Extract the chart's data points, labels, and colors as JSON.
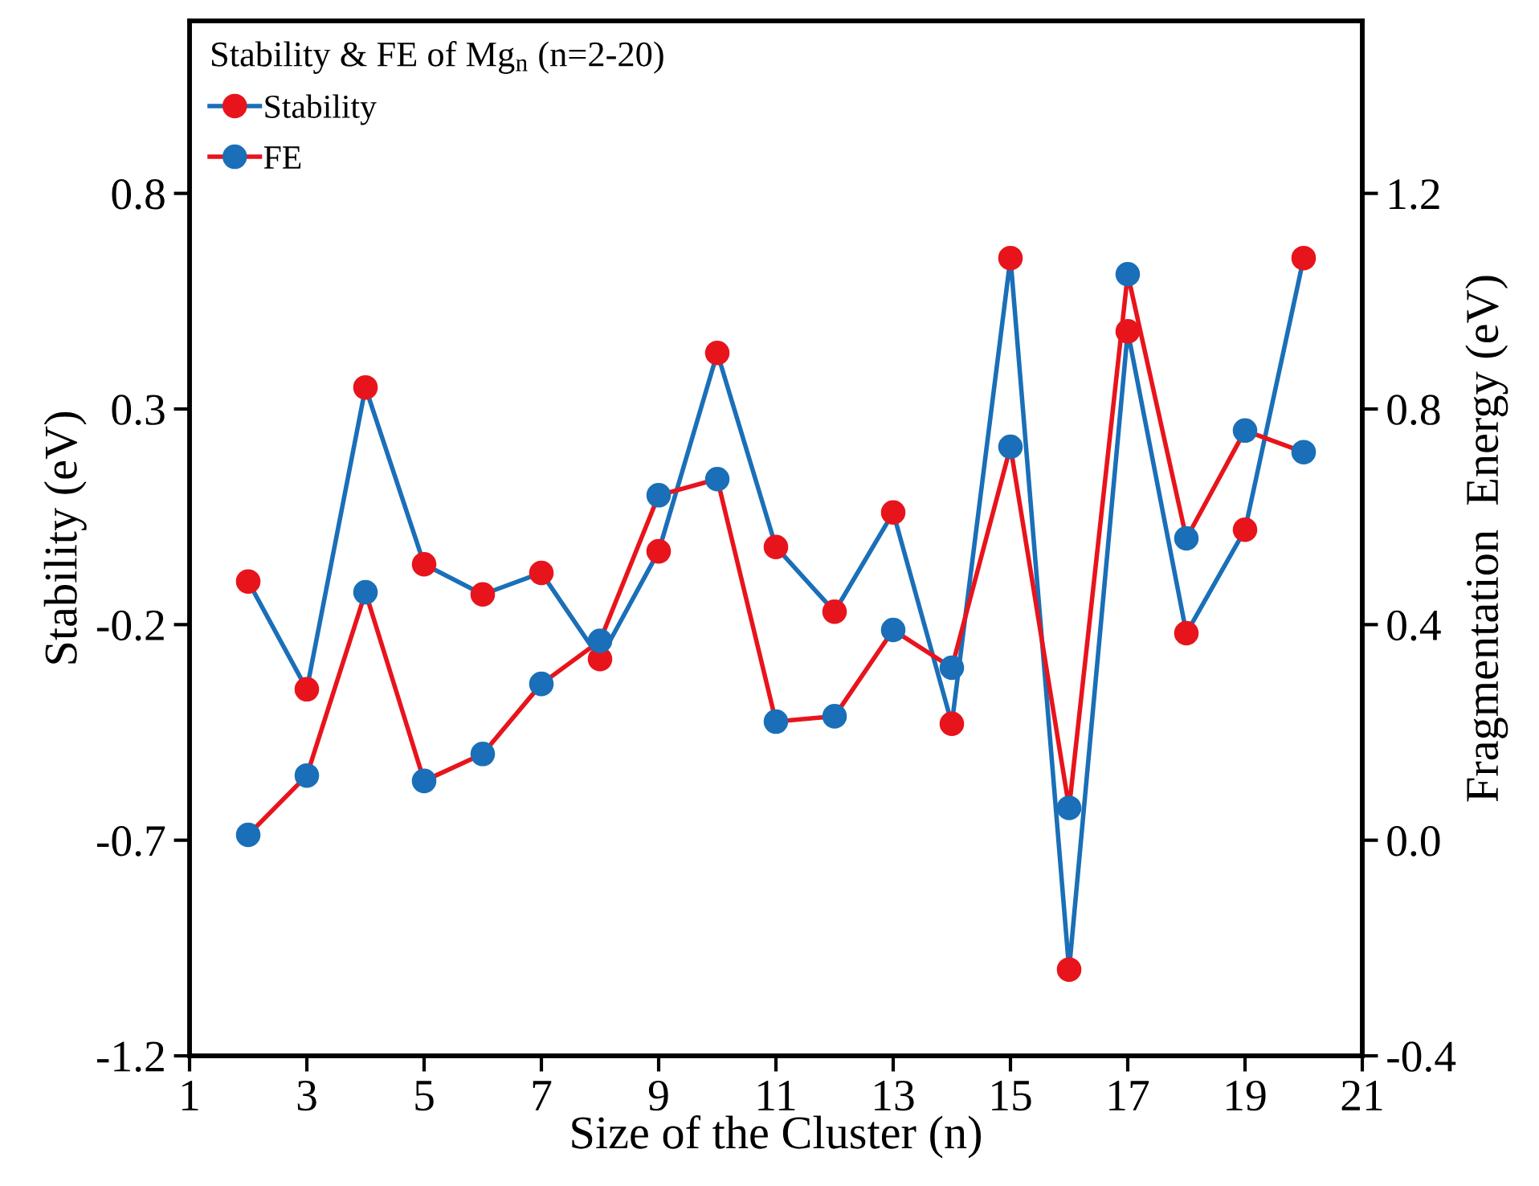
{
  "chart_data": {
    "type": "line",
    "legend_title": "Stability & FE of Mg$_{n}$ (n=2-20)",
    "xlabel": "Size of the Cluster (n)",
    "ylabel": "Stability (eV)",
    "y2label": "Fragmentation  Energy (eV)",
    "x": [
      2,
      3,
      4,
      5,
      6,
      7,
      8,
      9,
      10,
      11,
      12,
      13,
      14,
      15,
      16,
      17,
      18,
      19,
      20
    ],
    "series": [
      {
        "name": "Stability",
        "color": "#e8141c",
        "values": [
          -0.1,
          -0.35,
          0.35,
          -0.06,
          -0.13,
          -0.08,
          -0.28,
          -0.03,
          0.43,
          -0.02,
          -0.17,
          0.06,
          -0.43,
          0.65,
          -1.0,
          0.48,
          -0.22,
          0.02,
          0.65
        ]
      },
      {
        "name": "FE",
        "color": "#1a6fb8",
        "axis": "y2",
        "values": [
          0.01,
          0.12,
          0.46,
          0.11,
          0.16,
          0.29,
          0.37,
          0.64,
          0.67,
          0.22,
          0.23,
          0.39,
          0.32,
          0.73,
          0.06,
          1.05,
          0.56,
          0.76,
          0.72
        ]
      }
    ],
    "marker": "circle",
    "line_style": "solid",
    "xlim": [
      1,
      21
    ],
    "xticks": [
      1,
      3,
      5,
      7,
      9,
      11,
      13,
      15,
      17,
      19,
      21
    ],
    "ylim": [
      -1.2,
      1.2
    ],
    "yticks": [
      -1.2,
      -0.7,
      -0.2,
      0.3,
      0.8
    ],
    "y2lim": [
      -0.4,
      1.52
    ],
    "y2ticks": [
      -0.4,
      {
        "value": 0,
        "label": "0.0"
      },
      0.4,
      0.8,
      1.2
    ],
    "grid": false,
    "legend": "top left"
  }
}
